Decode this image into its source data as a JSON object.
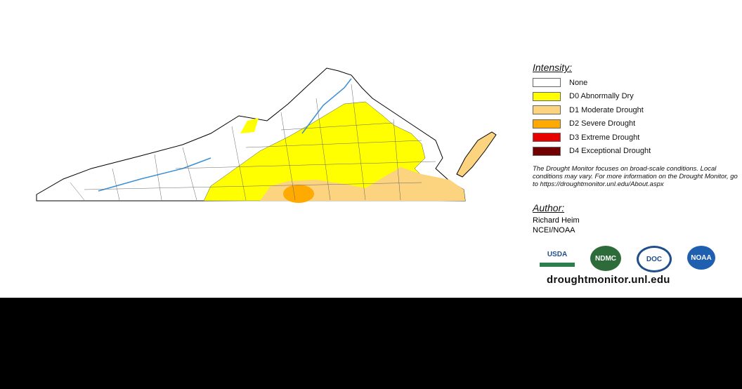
{
  "legend": {
    "title": "Intensity:",
    "items": [
      {
        "label": "None",
        "color": "#ffffff"
      },
      {
        "label": "D0 Abnormally Dry",
        "color": "#ffff00"
      },
      {
        "label": "D1 Moderate Drought",
        "color": "#fcd37f"
      },
      {
        "label": "D2 Severe Drought",
        "color": "#ffaa00"
      },
      {
        "label": "D3 Extreme Drought",
        "color": "#e60000"
      },
      {
        "label": "D4 Exceptional Drought",
        "color": "#730000"
      }
    ],
    "note": "The Drought Monitor focuses on broad-scale conditions. Local conditions may vary. For more information on the Drought Monitor, go to https://droughtmonitor.unl.edu/About.aspx"
  },
  "author": {
    "title": "Author:",
    "name": "Richard Heim",
    "org": "NCEI/NOAA"
  },
  "logos": [
    "USDA",
    "NDMC",
    "DOC",
    "NOAA"
  ],
  "url": "droughtmonitor.unl.edu"
}
